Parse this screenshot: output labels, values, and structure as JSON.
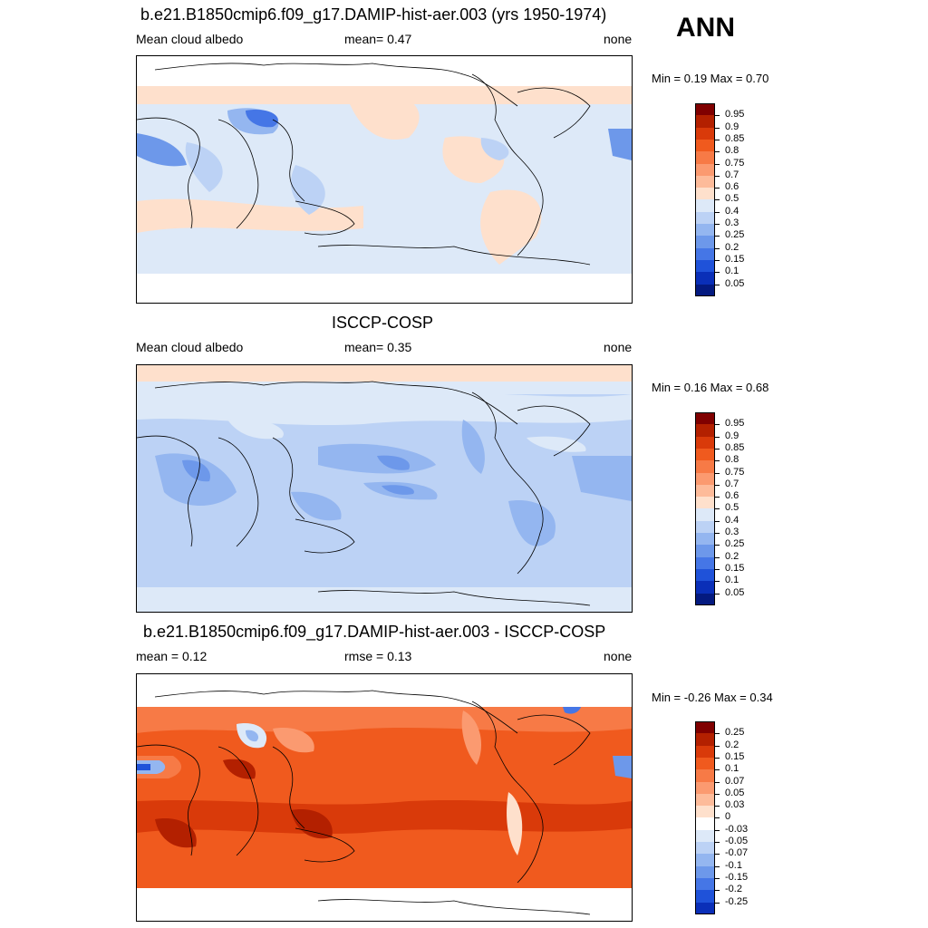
{
  "season": "ANN",
  "panels": [
    {
      "title": "b.e21.B1850cmip6.f09_g17.DAMIP-hist-aer.003 (yrs 1950-1974)",
      "left": "Mean cloud albedo",
      "center": "mean=   0.47",
      "right": "none",
      "minmax": "Min =   0.19 Max =   0.70",
      "colorbar": {
        "labels": [
          "0.95",
          "0.9",
          "0.85",
          "0.8",
          "0.75",
          "0.7",
          "0.6",
          "0.5",
          "0.4",
          "0.3",
          "0.25",
          "0.2",
          "0.15",
          "0.1",
          "0.05"
        ],
        "colors": [
          "#800000",
          "#b32000",
          "#d93a0a",
          "#f05a1e",
          "#f77a46",
          "#fb9a70",
          "#fdbb9a",
          "#fee0cc",
          "#dde9f8",
          "#bcd2f5",
          "#94b6f0",
          "#6d98ea",
          "#4576e6",
          "#1f52d9",
          "#0a2fb8",
          "#041a80"
        ]
      }
    },
    {
      "title": "ISCCP-COSP",
      "left": "Mean cloud albedo",
      "center": "mean=   0.35",
      "right": "none",
      "minmax": "Min =   0.16 Max =   0.68",
      "colorbar": {
        "labels": [
          "0.95",
          "0.9",
          "0.85",
          "0.8",
          "0.75",
          "0.7",
          "0.6",
          "0.5",
          "0.4",
          "0.3",
          "0.25",
          "0.2",
          "0.15",
          "0.1",
          "0.05"
        ],
        "colors": [
          "#800000",
          "#b32000",
          "#d93a0a",
          "#f05a1e",
          "#f77a46",
          "#fb9a70",
          "#fdbb9a",
          "#fee0cc",
          "#dde9f8",
          "#bcd2f5",
          "#94b6f0",
          "#6d98ea",
          "#4576e6",
          "#1f52d9",
          "#0a2fb8",
          "#041a80"
        ]
      }
    },
    {
      "title": "b.e21.B1850cmip6.f09_g17.DAMIP-hist-aer.003 - ISCCP-COSP",
      "left": "mean =   0.12",
      "center": "rmse =   0.13",
      "right": "none",
      "minmax": "Min =  -0.26 Max =   0.34",
      "colorbar": {
        "labels": [
          "0.25",
          "0.2",
          "0.15",
          "0.1",
          "0.07",
          "0.05",
          "0.03",
          "0",
          "-0.03",
          "-0.05",
          "-0.07",
          "-0.1",
          "-0.15",
          "-0.2",
          "-0.25"
        ],
        "colors": [
          "#800000",
          "#b32000",
          "#d93a0a",
          "#f05a1e",
          "#f77a46",
          "#fb9a70",
          "#fdbb9a",
          "#fee0cc",
          "#ffffff",
          "#dde9f8",
          "#bcd2f5",
          "#94b6f0",
          "#6d98ea",
          "#4576e6",
          "#1f52d9",
          "#0a2fb8"
        ]
      }
    }
  ]
}
